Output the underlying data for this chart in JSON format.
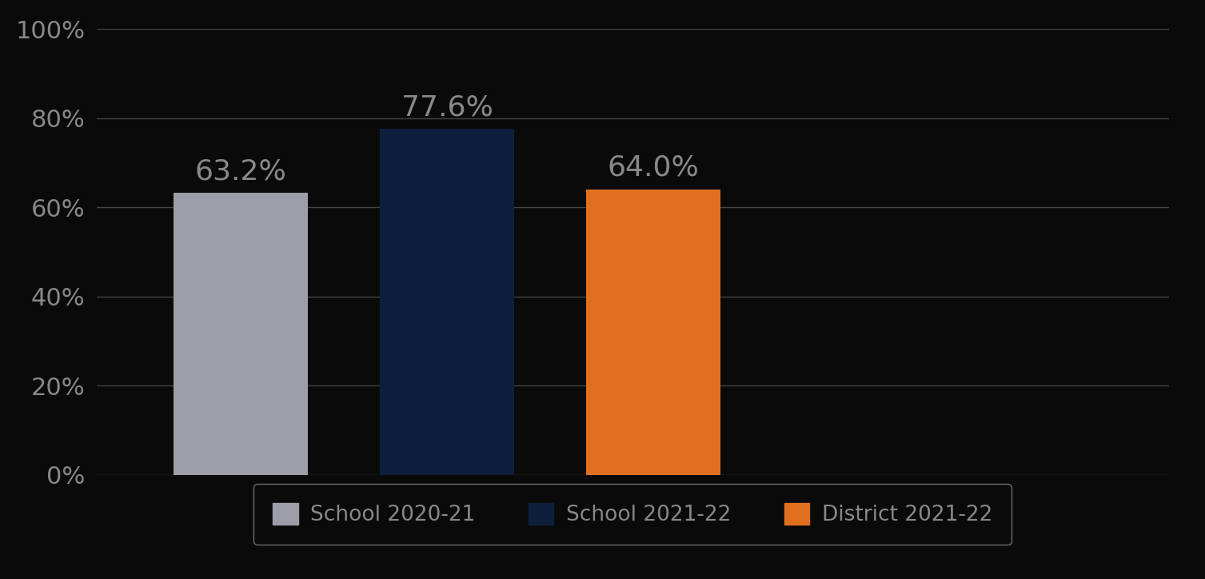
{
  "categories": [
    "School 2020-21",
    "School 2021-22",
    "District 2021-22"
  ],
  "values": [
    63.2,
    77.6,
    64.0
  ],
  "bar_colors": [
    "#9e9ea8",
    "#0d1f3c",
    "#e07020"
  ],
  "label_color": "#888888",
  "ylim": [
    0,
    100
  ],
  "yticks": [
    0,
    20,
    40,
    60,
    80,
    100
  ],
  "ytick_labels": [
    "0%",
    "20%",
    "40%",
    "60%",
    "80%",
    "100%"
  ],
  "background_color": "#0a0a0a",
  "grid_color": "#444444",
  "tick_fontsize": 22,
  "legend_fontsize": 19,
  "bar_label_fontsize": 26,
  "bar_positions": [
    1,
    2,
    3
  ],
  "bar_width": 0.65,
  "xlim": [
    0.3,
    5.5
  ]
}
